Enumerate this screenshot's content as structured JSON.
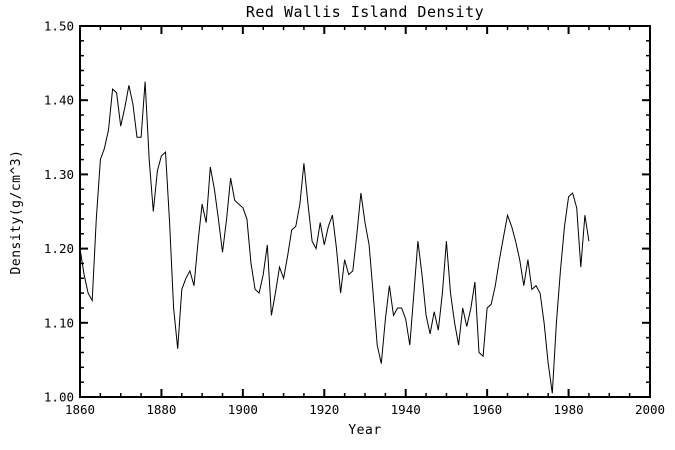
{
  "chart_data": {
    "type": "line",
    "title": "Red Wallis Island Density",
    "xlabel": "Year",
    "ylabel": "Density(g/cm^3)",
    "xlim": [
      1860,
      2000
    ],
    "ylim": [
      1.0,
      1.5
    ],
    "x_major_ticks": [
      1860,
      1880,
      1900,
      1920,
      1940,
      1960,
      1980,
      2000
    ],
    "x_minor_step": 5,
    "y_major_ticks": [
      1.0,
      1.1,
      1.2,
      1.3,
      1.4,
      1.5
    ],
    "y_minor_step": 0.02,
    "grid": false,
    "legend": "none",
    "background_color": "#ffffff",
    "axis_color": "#000000",
    "line_color": "#000000",
    "series": [
      {
        "name": "density",
        "x_start": 1860,
        "x_step": 1,
        "values": [
          1.2,
          1.165,
          1.14,
          1.13,
          1.24,
          1.32,
          1.335,
          1.36,
          1.415,
          1.41,
          1.365,
          1.39,
          1.42,
          1.395,
          1.35,
          1.35,
          1.425,
          1.32,
          1.25,
          1.305,
          1.325,
          1.33,
          1.235,
          1.12,
          1.065,
          1.145,
          1.16,
          1.17,
          1.15,
          1.21,
          1.26,
          1.235,
          1.31,
          1.28,
          1.24,
          1.195,
          1.24,
          1.295,
          1.265,
          1.26,
          1.255,
          1.24,
          1.18,
          1.145,
          1.14,
          1.165,
          1.205,
          1.11,
          1.14,
          1.175,
          1.16,
          1.19,
          1.225,
          1.23,
          1.26,
          1.315,
          1.26,
          1.21,
          1.2,
          1.235,
          1.205,
          1.23,
          1.245,
          1.2,
          1.14,
          1.185,
          1.165,
          1.17,
          1.22,
          1.275,
          1.235,
          1.205,
          1.14,
          1.07,
          1.045,
          1.105,
          1.15,
          1.11,
          1.12,
          1.12,
          1.105,
          1.07,
          1.14,
          1.21,
          1.165,
          1.11,
          1.085,
          1.115,
          1.09,
          1.14,
          1.21,
          1.14,
          1.1,
          1.07,
          1.12,
          1.095,
          1.12,
          1.155,
          1.06,
          1.055,
          1.12,
          1.125,
          1.15,
          1.185,
          1.215,
          1.245,
          1.23,
          1.21,
          1.185,
          1.15,
          1.185,
          1.145,
          1.15,
          1.14,
          1.1,
          1.045,
          1.005,
          1.1,
          1.17,
          1.23,
          1.27,
          1.275,
          1.255,
          1.175,
          1.245,
          1.21
        ]
      }
    ]
  }
}
